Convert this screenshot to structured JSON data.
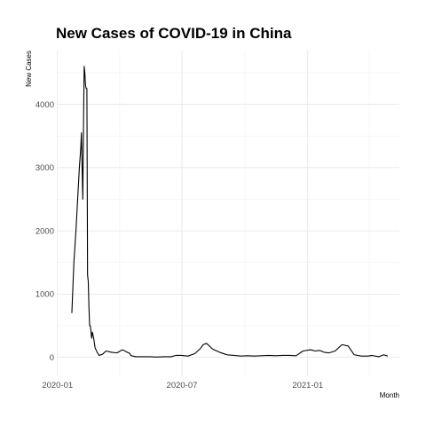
{
  "chart_data": {
    "type": "line",
    "title": "New Cases of COVID-19 in China",
    "xlabel": "Month",
    "ylabel": "New Cases",
    "x_ticks": [
      {
        "date": "2020-01-01",
        "label": "2020-01"
      },
      {
        "date": "2020-07-01",
        "label": "2020-07"
      },
      {
        "date": "2021-01-01",
        "label": "2021-01"
      }
    ],
    "y_ticks": [
      0,
      1000,
      2000,
      3000,
      4000
    ],
    "xlim": [
      "2019-12-31",
      "2021-05-15"
    ],
    "ylim": [
      -300,
      4850
    ],
    "grid": true,
    "legend": "none",
    "series": [
      {
        "x": [
          "2020-01-22",
          "2020-01-25",
          "2020-01-28",
          "2020-01-31",
          "2020-02-02",
          "2020-02-04",
          "2020-02-05",
          "2020-02-06",
          "2020-02-07",
          "2020-02-08",
          "2020-02-09",
          "2020-02-10",
          "2020-02-11",
          "2020-02-12",
          "2020-02-13",
          "2020-02-14",
          "2020-02-15",
          "2020-02-16",
          "2020-02-17",
          "2020-02-18",
          "2020-02-19",
          "2020-02-20",
          "2020-02-21",
          "2020-02-22",
          "2020-02-23",
          "2020-02-25",
          "2020-02-28",
          "2020-03-02",
          "2020-03-07",
          "2020-03-12",
          "2020-03-20",
          "2020-03-28",
          "2020-04-05",
          "2020-04-12",
          "2020-04-16",
          "2020-04-17",
          "2020-04-20",
          "2020-04-25",
          "2020-05-05",
          "2020-05-15",
          "2020-05-25",
          "2020-06-05",
          "2020-06-15",
          "2020-06-22",
          "2020-06-30",
          "2020-07-10",
          "2020-07-20",
          "2020-07-28",
          "2020-08-01",
          "2020-08-06",
          "2020-08-15",
          "2020-08-25",
          "2020-09-05",
          "2020-09-15",
          "2020-09-25",
          "2020-10-05",
          "2020-10-15",
          "2020-10-25",
          "2020-11-05",
          "2020-11-15",
          "2020-11-25",
          "2020-12-05",
          "2020-12-15",
          "2020-12-25",
          "2021-01-05",
          "2021-01-12",
          "2021-01-18",
          "2021-01-25",
          "2021-02-01",
          "2021-02-10",
          "2021-02-20",
          "2021-03-01",
          "2021-03-10",
          "2021-03-20",
          "2021-03-30",
          "2021-04-05",
          "2021-04-15",
          "2021-04-22",
          "2021-04-28"
        ],
        "values": [
          700,
          1500,
          2000,
          2600,
          3000,
          3300,
          3550,
          3000,
          2500,
          3600,
          4600,
          4500,
          4300,
          4250,
          4250,
          1300,
          1200,
          800,
          500,
          500,
          400,
          300,
          400,
          350,
          300,
          150,
          80,
          30,
          50,
          100,
          80,
          70,
          120,
          80,
          60,
          30,
          20,
          10,
          10,
          10,
          5,
          10,
          10,
          30,
          30,
          20,
          60,
          140,
          200,
          220,
          130,
          80,
          40,
          30,
          20,
          25,
          20,
          25,
          30,
          25,
          30,
          30,
          25,
          100,
          120,
          100,
          110,
          80,
          70,
          100,
          200,
          180,
          40,
          20,
          20,
          30,
          10,
          40,
          20
        ]
      }
    ]
  }
}
